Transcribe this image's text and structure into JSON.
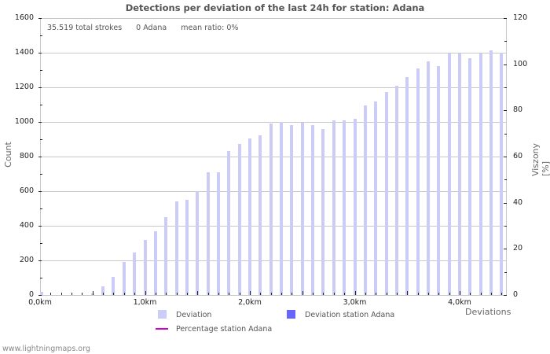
{
  "chart_data": {
    "type": "bar",
    "title": "Detections per deviation of the last 24h for station: Adana",
    "xlabel": "Deviations",
    "ylabel": "Count",
    "ylabel_right": "Viszony [%]",
    "ylim": [
      0,
      1600
    ],
    "ylim_right": [
      0,
      120
    ],
    "yticks_left": [
      0,
      200,
      400,
      600,
      800,
      1000,
      1200,
      1400,
      1600
    ],
    "yticks_right": [
      0,
      20,
      40,
      60,
      80,
      100,
      120
    ],
    "xticks": [
      "0,0km",
      "1,0km",
      "2,0km",
      "3,0km",
      "4,0km"
    ],
    "bin_width_km": 0.1,
    "grid": true,
    "legend_position": "bottom",
    "series": [
      {
        "name": "Deviation",
        "color": "#ccccf8",
        "values": [
          20,
          0,
          0,
          0,
          0,
          8,
          50,
          105,
          190,
          245,
          320,
          370,
          450,
          540,
          550,
          600,
          710,
          710,
          830,
          875,
          905,
          925,
          990,
          1000,
          980,
          995,
          980,
          960,
          1010,
          1010,
          1020,
          1095,
          1120,
          1175,
          1210,
          1260,
          1310,
          1350,
          1325,
          1395,
          1395,
          1370,
          1395,
          1415,
          1400
        ]
      },
      {
        "name": "Deviation station Adana",
        "color": "#6666ff",
        "values": [
          0,
          0,
          0,
          0,
          0,
          0,
          0,
          0,
          0,
          0,
          0,
          0,
          0,
          0,
          0,
          0,
          0,
          0,
          0,
          0,
          0,
          0,
          0,
          0,
          0,
          0,
          0,
          0,
          0,
          0,
          0,
          0,
          0,
          0,
          0,
          0,
          0,
          0,
          0,
          0,
          0,
          0,
          0,
          0,
          0
        ]
      },
      {
        "name": "Percentage station Adana",
        "color": "#cc00cc",
        "type": "line",
        "values": []
      }
    ]
  },
  "stats": {
    "total": "35.519 total strokes",
    "station": "0 Adana",
    "ratio": "mean ratio: 0%"
  },
  "legend": {
    "deviation": "Deviation",
    "deviation_station": "Deviation station Adana",
    "percentage_station": "Percentage station Adana"
  },
  "footer": "www.lightningmaps.org"
}
